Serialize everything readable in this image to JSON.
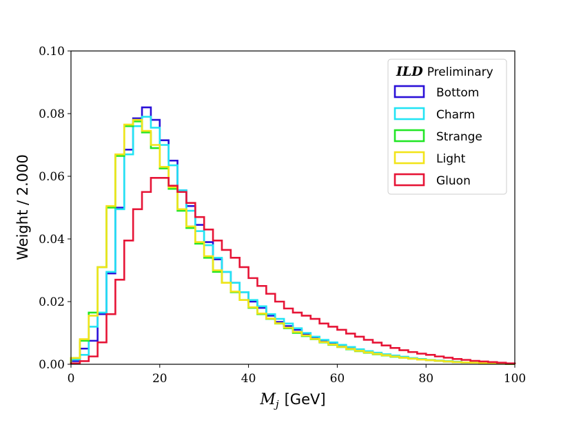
{
  "chart_data": {
    "type": "histogram-step",
    "title": "",
    "xlabel_var": "M",
    "xlabel_sub": "j",
    "xlabel_unit": "[GeV]",
    "ylabel": "Weight / 2.000",
    "xlim": [
      0,
      100
    ],
    "ylim": [
      0,
      0.1
    ],
    "bin_width": 2,
    "x_ticks": [
      0,
      20,
      40,
      60,
      80,
      100
    ],
    "x_tick_labels": [
      "0",
      "20",
      "40",
      "60",
      "80",
      "100"
    ],
    "y_ticks": [
      0,
      0.02,
      0.04,
      0.06,
      0.08,
      0.1
    ],
    "y_tick_labels": [
      "0.00",
      "0.02",
      "0.04",
      "0.06",
      "0.08",
      "0.10"
    ],
    "legend": {
      "title_bold": "ILD",
      "title_rest": "Preliminary",
      "placement": "top-right"
    },
    "series": [
      {
        "name": "Bottom",
        "color": "#2a10d8",
        "values": [
          0.001,
          0.005,
          0.0075,
          0.016,
          0.029,
          0.05,
          0.0685,
          0.0785,
          0.082,
          0.078,
          0.0715,
          0.065,
          0.0555,
          0.0505,
          0.0445,
          0.039,
          0.0335,
          0.0295,
          0.026,
          0.023,
          0.02,
          0.018,
          0.0155,
          0.0135,
          0.0122,
          0.011,
          0.0095,
          0.0085,
          0.0075,
          0.0068,
          0.006,
          0.0052,
          0.0046,
          0.004,
          0.0035,
          0.003,
          0.0026,
          0.0022,
          0.0019,
          0.0016,
          0.0013,
          0.0011,
          0.0009,
          0.0007,
          0.0006,
          0.0005,
          0.0004,
          0.0003,
          0.0002,
          0.0001
        ]
      },
      {
        "name": "Charm",
        "color": "#22e4f4",
        "values": [
          0.0015,
          0.003,
          0.012,
          0.0165,
          0.0295,
          0.0495,
          0.067,
          0.076,
          0.079,
          0.0755,
          0.07,
          0.0635,
          0.0555,
          0.049,
          0.0425,
          0.038,
          0.034,
          0.0295,
          0.026,
          0.023,
          0.0205,
          0.0185,
          0.016,
          0.0145,
          0.013,
          0.0115,
          0.01,
          0.0088,
          0.0078,
          0.007,
          0.0062,
          0.0055,
          0.0048,
          0.0042,
          0.0037,
          0.0032,
          0.0028,
          0.0024,
          0.002,
          0.0017,
          0.0014,
          0.0012,
          0.001,
          0.0008,
          0.0006,
          0.0005,
          0.0004,
          0.0003,
          0.0002,
          0.0001
        ]
      },
      {
        "name": "Strange",
        "color": "#22e626",
        "values": [
          0.002,
          0.0075,
          0.0165,
          0.031,
          0.05,
          0.0665,
          0.076,
          0.0775,
          0.074,
          0.069,
          0.0625,
          0.056,
          0.049,
          0.0435,
          0.0385,
          0.034,
          0.0295,
          0.026,
          0.023,
          0.0205,
          0.018,
          0.016,
          0.0145,
          0.013,
          0.0115,
          0.01,
          0.009,
          0.008,
          0.007,
          0.0062,
          0.0055,
          0.0048,
          0.0042,
          0.0037,
          0.0032,
          0.0028,
          0.0024,
          0.0021,
          0.0018,
          0.0015,
          0.0013,
          0.0011,
          0.0009,
          0.0007,
          0.0006,
          0.0005,
          0.0004,
          0.0003,
          0.0002,
          0.0001
        ]
      },
      {
        "name": "Light",
        "color": "#f2e41a",
        "values": [
          0.002,
          0.008,
          0.0155,
          0.031,
          0.0505,
          0.067,
          0.0765,
          0.078,
          0.0745,
          0.07,
          0.063,
          0.0565,
          0.0495,
          0.044,
          0.039,
          0.0345,
          0.03,
          0.026,
          0.0232,
          0.0205,
          0.0182,
          0.0162,
          0.0146,
          0.0131,
          0.0117,
          0.0103,
          0.0092,
          0.0081,
          0.0071,
          0.0063,
          0.0056,
          0.0049,
          0.0043,
          0.0038,
          0.0033,
          0.0029,
          0.0025,
          0.0021,
          0.0018,
          0.0015,
          0.0013,
          0.0011,
          0.0009,
          0.0007,
          0.0006,
          0.0005,
          0.0004,
          0.0003,
          0.0002,
          0.0001
        ]
      },
      {
        "name": "Gluon",
        "color": "#e61436",
        "values": [
          0.0003,
          0.001,
          0.0025,
          0.007,
          0.016,
          0.027,
          0.0395,
          0.0495,
          0.055,
          0.0595,
          0.0595,
          0.057,
          0.055,
          0.0515,
          0.047,
          0.043,
          0.0395,
          0.0365,
          0.034,
          0.031,
          0.0275,
          0.025,
          0.0225,
          0.02,
          0.0178,
          0.0165,
          0.0155,
          0.0145,
          0.013,
          0.012,
          0.011,
          0.0098,
          0.0088,
          0.0078,
          0.0069,
          0.006,
          0.0052,
          0.0045,
          0.0039,
          0.0034,
          0.003,
          0.0025,
          0.0021,
          0.0017,
          0.0014,
          0.0011,
          0.0009,
          0.0007,
          0.0005,
          0.0003
        ]
      }
    ]
  }
}
